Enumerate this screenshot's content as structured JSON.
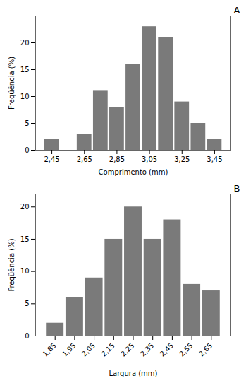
{
  "chart_data": [
    {
      "type": "bar",
      "title": "A",
      "x": [
        2.45,
        2.65,
        2.75,
        2.85,
        2.95,
        3.05,
        3.15,
        3.25,
        3.35,
        3.45
      ],
      "values": [
        2,
        3,
        11,
        8,
        16,
        23,
        21,
        9,
        5,
        2
      ],
      "color": "#7a7a7a",
      "xlabel": "Comprimento (mm)",
      "ylabel": "Freqüência (%)",
      "xlim": [
        2.35,
        3.55
      ],
      "xticks": [
        {
          "value": 2.45,
          "label": "2,45"
        },
        {
          "value": 2.65,
          "label": "2,65"
        },
        {
          "value": 2.85,
          "label": "2,85"
        },
        {
          "value": 3.05,
          "label": "3,05"
        },
        {
          "value": 3.25,
          "label": "3,25"
        },
        {
          "value": 3.45,
          "label": "3,45"
        }
      ],
      "ylim": [
        0,
        25
      ],
      "yticks": [
        0,
        5,
        10,
        15,
        20
      ],
      "grid": false
    },
    {
      "type": "bar",
      "title": "B",
      "x": [
        1.85,
        1.95,
        2.05,
        2.15,
        2.25,
        2.35,
        2.45,
        2.55,
        2.65
      ],
      "values": [
        2,
        6,
        9,
        15,
        20,
        15,
        18,
        8,
        7
      ],
      "color": "#7a7a7a",
      "xlabel": "Largura (mm)",
      "ylabel": "Freqüência (%)",
      "xlim": [
        1.75,
        2.75
      ],
      "xticks": [
        {
          "value": 1.85,
          "label": "1,85"
        },
        {
          "value": 1.95,
          "label": "1,95"
        },
        {
          "value": 2.05,
          "label": "2,05"
        },
        {
          "value": 2.15,
          "label": "2,15"
        },
        {
          "value": 2.25,
          "label": "2,25"
        },
        {
          "value": 2.35,
          "label": "2,35"
        },
        {
          "value": 2.45,
          "label": "2,45"
        },
        {
          "value": 2.55,
          "label": "2,55"
        },
        {
          "value": 2.65,
          "label": "2,65"
        }
      ],
      "ylim": [
        0,
        22
      ],
      "yticks": [
        0,
        5,
        10,
        15,
        20
      ],
      "grid": false
    }
  ]
}
